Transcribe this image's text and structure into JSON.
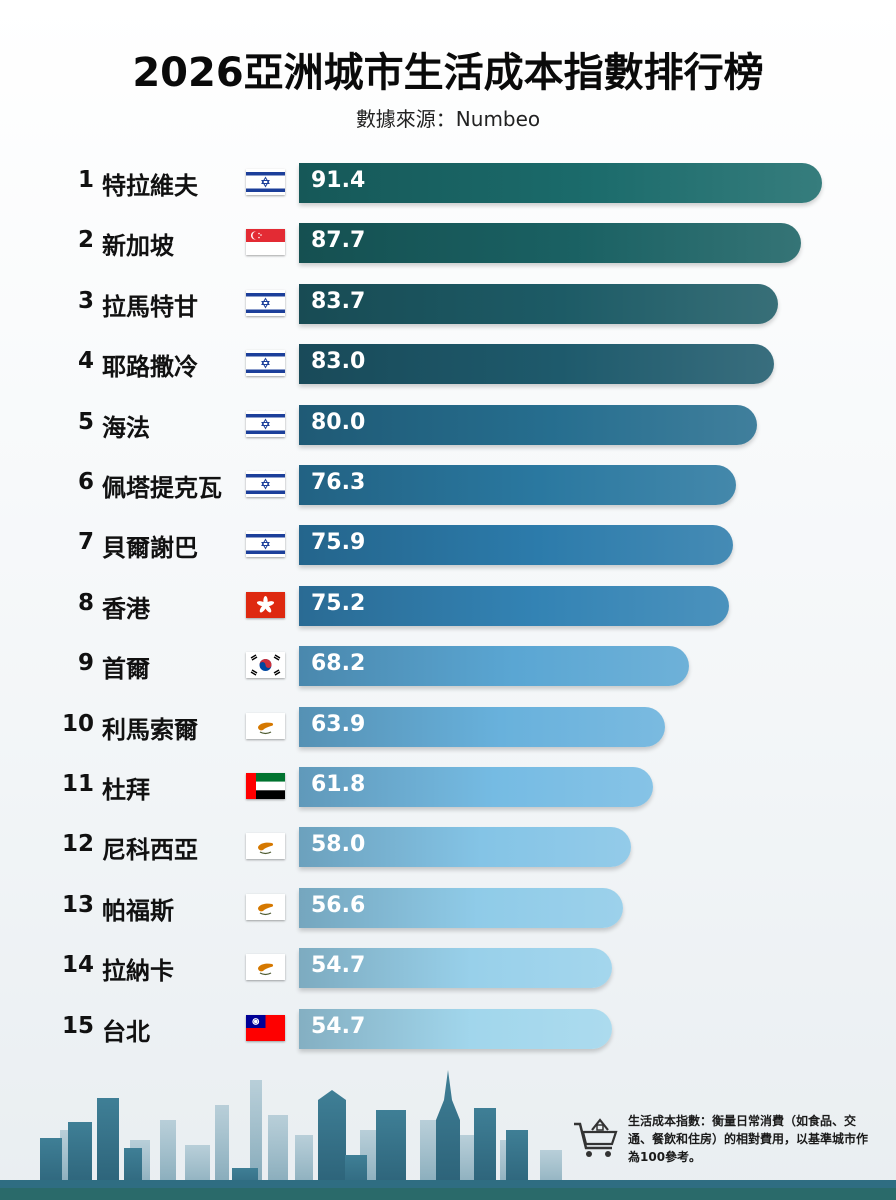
{
  "header": {
    "title": "2026亞洲城市生活成本指數排行榜",
    "subtitle": "數據來源：Numbeo"
  },
  "chart_data": {
    "type": "bar",
    "orientation": "horizontal",
    "title": "2026亞洲城市生活成本指數排行榜",
    "subtitle": "數據來源：Numbeo",
    "xlim": [
      0,
      100
    ],
    "grid": false,
    "legend": "none",
    "categories": [
      "特拉維夫",
      "新加坡",
      "拉馬特甘",
      "耶路撒冷",
      "海法",
      "佩塔提克瓦",
      "貝爾謝巴",
      "香港",
      "首爾",
      "利馬索爾",
      "杜拜",
      "尼科西亞",
      "帕福斯",
      "拉納卡",
      "台北"
    ],
    "ranks": [
      "1",
      "2",
      "3",
      "4",
      "5",
      "6",
      "7",
      "8",
      "9",
      "10",
      "11",
      "12",
      "13",
      "14",
      "15"
    ],
    "values": [
      91.4,
      87.7,
      83.7,
      83.0,
      80.0,
      76.3,
      75.9,
      75.2,
      68.2,
      63.9,
      61.8,
      58.0,
      56.6,
      54.7,
      54.7
    ],
    "value_labels": [
      "91.4",
      "87.7",
      "83.7",
      "83.0",
      "80.0",
      "76.3",
      "75.9",
      "75.2",
      "68.2",
      "63.9",
      "61.8",
      "58.0",
      "56.6",
      "54.7",
      "54.7"
    ],
    "flags": [
      "israel-flag-icon",
      "singapore-flag-icon",
      "israel-flag-icon",
      "israel-flag-icon",
      "israel-flag-icon",
      "israel-flag-icon",
      "israel-flag-icon",
      "hong-kong-flag-icon",
      "south-korea-flag-icon",
      "cyprus-flag-icon",
      "uae-flag-icon",
      "cyprus-flag-icon",
      "cyprus-flag-icon",
      "cyprus-flag-icon",
      "taiwan-flag-icon"
    ],
    "bar_colors": [
      "#1b6b6b",
      "#1a6163",
      "#1d5b66",
      "#1e5a6c",
      "#266e8f",
      "#2a78a0",
      "#2c7bab",
      "#3383b4",
      "#5aa6d3",
      "#68b1dc",
      "#75bbe3",
      "#84c4e6",
      "#8fcbe8",
      "#98d0ea",
      "#a1d6ec"
    ]
  },
  "footnote": {
    "text": "生活成本指數：衡量日常消費（如食品、交通、餐飲和住房）的相對費用，以基準城市作為100參考。"
  },
  "icons": {
    "footnote_icon": "shopping-cart-house-icon",
    "decoration": "city-skyline-icon"
  }
}
